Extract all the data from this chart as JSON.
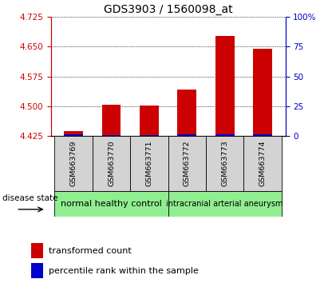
{
  "title": "GDS3903 / 1560098_at",
  "samples": [
    "GSM663769",
    "GSM663770",
    "GSM663771",
    "GSM663772",
    "GSM663773",
    "GSM663774"
  ],
  "red_values": [
    4.437,
    4.503,
    4.502,
    4.542,
    4.678,
    4.645
  ],
  "blue_values": [
    4.428,
    4.426,
    4.426,
    4.428,
    4.429,
    4.428
  ],
  "baseline": 4.425,
  "ylim": [
    4.425,
    4.725
  ],
  "yticks_left": [
    4.425,
    4.5,
    4.575,
    4.65,
    4.725
  ],
  "yticks_right": [
    0,
    25,
    50,
    75,
    100
  ],
  "left_color": "#cc0000",
  "right_color": "#0000cc",
  "bar_red_color": "#cc0000",
  "bar_blue_color": "#0000cc",
  "group1_label": "normal healthy control",
  "group2_label": "intracranial arterial aneurysm",
  "group1_color": "#90ee90",
  "group2_color": "#90ee90",
  "disease_state_label": "disease state",
  "legend_red": "transformed count",
  "legend_blue": "percentile rank within the sample",
  "bar_width": 0.5,
  "sample_bg_color": "#d3d3d3",
  "plot_bg_color": "#ffffff"
}
